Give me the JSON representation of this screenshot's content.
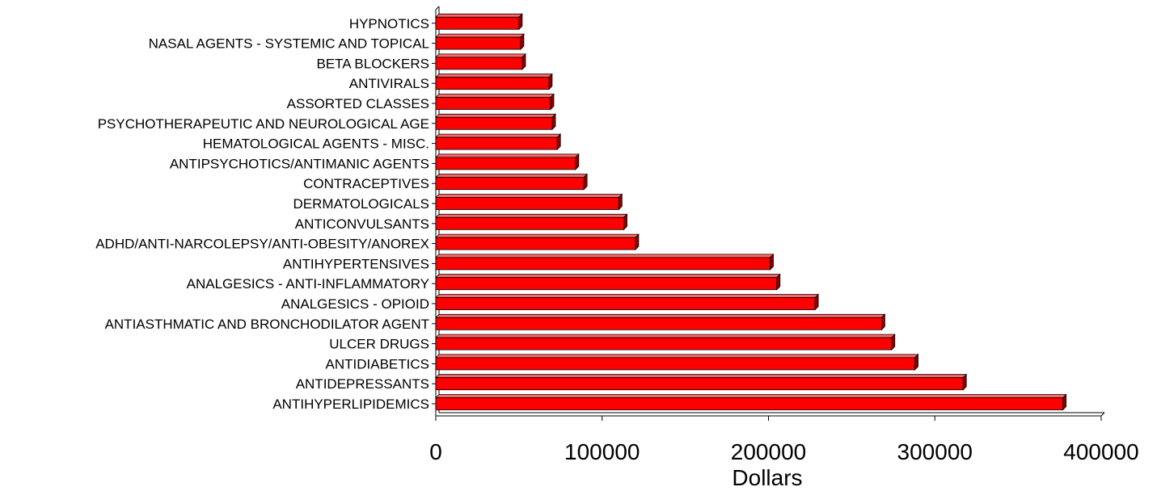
{
  "chart_data": {
    "type": "bar",
    "orientation": "horizontal",
    "style": "3d",
    "bar_color": "#ff0000",
    "bar_edge_color": "#000000",
    "categories": [
      "ANTIHYPERLIPIDEMICS",
      "ANTIDEPRESSANTS",
      "ANTIDIABETICS",
      "ULCER DRUGS",
      "ANTIASTHMATIC AND BRONCHODILATOR AGENT",
      "ANALGESICS - OPIOID",
      "ANALGESICS - ANTI-INFLAMMATORY",
      "ANTIHYPERTENSIVES",
      "ADHD/ANTI-NARCOLEPSY/ANTI-OBESITY/ANOREX",
      "ANTICONVULSANTS",
      "DERMATOLOGICALS",
      "CONTRACEPTIVES",
      "ANTIPSYCHOTICS/ANTIMANIC AGENTS",
      "HEMATOLOGICAL AGENTS - MISC.",
      "PSYCHOTHERAPEUTIC AND NEUROLOGICAL AGE",
      "ASSORTED CLASSES",
      "ANTIVIRALS",
      "BETA BLOCKERS",
      "NASAL AGENTS - SYSTEMIC AND TOPICAL",
      "HYPNOTICS"
    ],
    "values": [
      377000,
      317000,
      288000,
      274000,
      268000,
      228000,
      205000,
      201000,
      120000,
      113000,
      110000,
      89000,
      84000,
      73000,
      70000,
      69000,
      68000,
      52000,
      51000,
      50000
    ],
    "xlabel": "Dollars",
    "ylabel": "",
    "xlim": [
      0,
      400000
    ],
    "xticks": [
      "0",
      "100000",
      "200000",
      "300000",
      "400000"
    ],
    "grid": false,
    "legend": "none"
  }
}
